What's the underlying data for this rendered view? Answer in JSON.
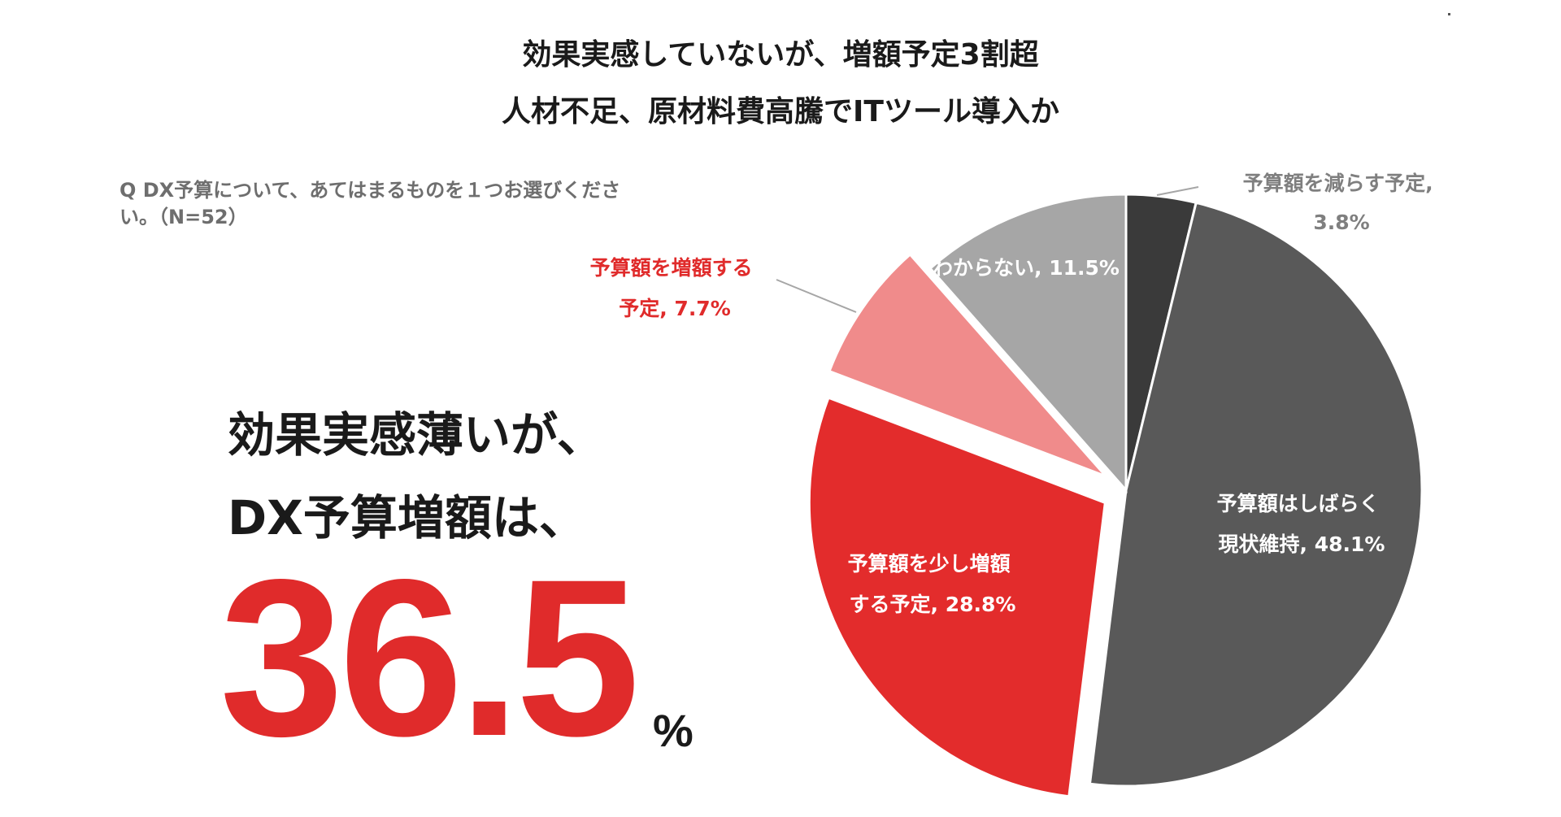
{
  "headline": {
    "line1": "効果実感していないが、増額予定3割超",
    "line2": "人材不足、原材料費高騰でITツール導入か"
  },
  "question": "Q DX予算について、あてはまるものを１つお選びください。（N=52）",
  "message": {
    "line1": "効果実感薄いが、",
    "line2": "DX予算増額は、",
    "value": "36.5",
    "unit": "%"
  },
  "colors": {
    "dark": "#3a3a3a",
    "gray": "#595959",
    "red": "#e32c2c",
    "pink": "#f08b8b",
    "light_gray": "#a6a6a6",
    "label_gray": "#7f7f7f",
    "label_red": "#e02b2b"
  },
  "chart_data": {
    "type": "pie",
    "title": "",
    "start_angle_deg": 0,
    "direction": "clockwise",
    "slices": [
      {
        "label": "予算額を減らす予定",
        "value": 3.8,
        "color": "#3a3a3a",
        "label_line1": "予算額を減らす予定,",
        "label_line2": "3.8%"
      },
      {
        "label": "予算額はしばらく現状維持",
        "value": 48.1,
        "color": "#595959",
        "label_line1": "予算額はしばらく",
        "label_line2": "現状維持, 48.1%"
      },
      {
        "label": "予算額を少し増額する予定",
        "value": 28.8,
        "color": "#e32c2c",
        "exploded": true,
        "label_line1": "予算額を少し増額",
        "label_line2": "する予定, 28.8%"
      },
      {
        "label": "予算額を増額する予定",
        "value": 7.7,
        "color": "#f08b8b",
        "exploded": true,
        "label_line1": "予算額を増額する",
        "label_line2": "予定, 7.7%"
      },
      {
        "label": "わからない",
        "value": 11.5,
        "color": "#a6a6a6",
        "label_line1": "わからない, 11.5%",
        "label_line2": ""
      }
    ]
  }
}
